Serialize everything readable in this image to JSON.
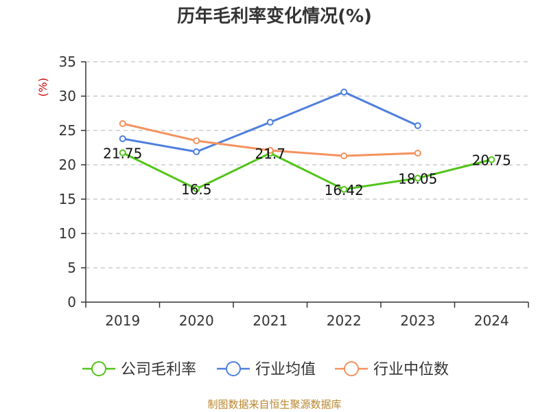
{
  "chart_data": {
    "type": "line",
    "title": "历年毛利率变化情况(%)",
    "ylabel": "(%)",
    "xlabel": "",
    "ylim": [
      0,
      35
    ],
    "yticks": [
      0,
      5,
      10,
      15,
      20,
      25,
      30,
      35
    ],
    "categories": [
      "2019",
      "2020",
      "2021",
      "2022",
      "2023",
      "2024"
    ],
    "grid": true,
    "legend_position": "bottom",
    "series": [
      {
        "name": "公司毛利率",
        "color": "#52c41a",
        "values": [
          21.75,
          16.5,
          21.7,
          16.42,
          18.05,
          20.75
        ],
        "labels": [
          "21.75",
          "16.5",
          "21.7",
          "16.42",
          "18.05",
          "20.75"
        ],
        "show_labels": true
      },
      {
        "name": "行业均值",
        "color": "#4e7fde",
        "values": [
          23.8,
          21.9,
          26.2,
          30.6,
          25.7,
          null
        ],
        "show_labels": false
      },
      {
        "name": "行业中位数",
        "color": "#f5915e",
        "values": [
          26.0,
          23.5,
          22.1,
          21.3,
          21.7,
          null
        ],
        "show_labels": false
      }
    ]
  },
  "footer": {
    "source": "制图数据来自恒生聚源数据库"
  }
}
